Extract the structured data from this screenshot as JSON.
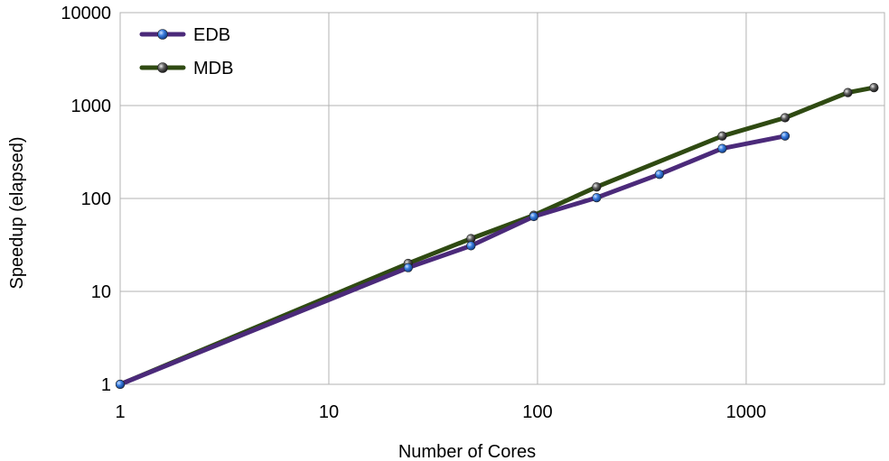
{
  "chart_data": {
    "type": "line",
    "title": "",
    "xlabel": "Number of Cores",
    "ylabel": "Speedup (elapsed)",
    "x_scale": "log",
    "y_scale": "log",
    "xlim": [
      1,
      4600
    ],
    "ylim": [
      1,
      10000
    ],
    "x_ticks": [
      "1",
      "10",
      "100",
      "1000"
    ],
    "y_ticks": [
      "1",
      "10",
      "100",
      "1000",
      "10000"
    ],
    "grid": true,
    "legend_position": "top-left",
    "series": [
      {
        "name": "EDB",
        "color": "#4b2a7a",
        "marker_color": "#2f6fd6",
        "x": [
          1,
          24,
          48,
          96,
          192,
          384,
          768,
          1536
        ],
        "y": [
          1,
          18,
          31,
          64,
          102,
          182,
          345,
          470
        ]
      },
      {
        "name": "MDB",
        "color": "#2f4a12",
        "marker_color": "#555555",
        "x": [
          1,
          24,
          48,
          96,
          192,
          768,
          1536,
          3072,
          4096
        ],
        "y": [
          1,
          20,
          37,
          66,
          133,
          470,
          740,
          1380,
          1560
        ]
      }
    ]
  }
}
